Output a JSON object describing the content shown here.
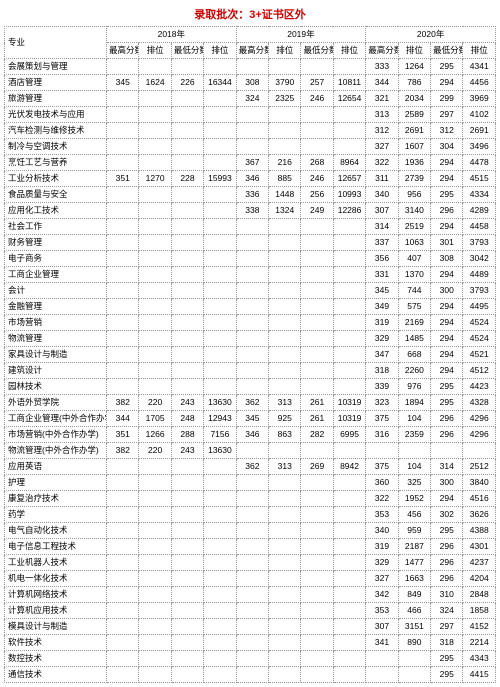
{
  "title": "录取批次：3+证书区外",
  "header": {
    "major": "专业",
    "years": [
      "2018年",
      "2019年",
      "2020年"
    ],
    "cols_full": [
      "最高分数",
      "排位",
      "最低分数",
      "排位"
    ]
  },
  "rows": [
    {
      "m": "会展策划与管理",
      "y18": [
        "",
        "",
        "",
        ""
      ],
      "y19": [
        "",
        "",
        "",
        ""
      ],
      "y20": [
        "333",
        "1264",
        "295",
        "4341"
      ]
    },
    {
      "m": "酒店管理",
      "y18": [
        "345",
        "1624",
        "226",
        "16344"
      ],
      "y19": [
        "308",
        "3790",
        "257",
        "10811"
      ],
      "y20": [
        "344",
        "786",
        "294",
        "4456"
      ]
    },
    {
      "m": "旅游管理",
      "y18": [
        "",
        "",
        "",
        ""
      ],
      "y19": [
        "324",
        "2325",
        "246",
        "12654"
      ],
      "y20": [
        "321",
        "2034",
        "299",
        "3969"
      ]
    },
    {
      "m": "光伏发电技术与应用",
      "y18": [
        "",
        "",
        "",
        ""
      ],
      "y19": [
        "",
        "",
        "",
        ""
      ],
      "y20": [
        "313",
        "2589",
        "297",
        "4102"
      ]
    },
    {
      "m": "汽车检测与维修技术",
      "y18": [
        "",
        "",
        "",
        ""
      ],
      "y19": [
        "",
        "",
        "",
        ""
      ],
      "y20": [
        "312",
        "2691",
        "312",
        "2691"
      ]
    },
    {
      "m": "制冷与空调技术",
      "y18": [
        "",
        "",
        "",
        ""
      ],
      "y19": [
        "",
        "",
        "",
        ""
      ],
      "y20": [
        "327",
        "1607",
        "304",
        "3496"
      ]
    },
    {
      "m": "烹饪工艺与营养",
      "y18": [
        "",
        "",
        "",
        ""
      ],
      "y19": [
        "367",
        "216",
        "268",
        "8964"
      ],
      "y20": [
        "322",
        "1936",
        "294",
        "4478"
      ]
    },
    {
      "m": "工业分析技术",
      "y18": [
        "351",
        "1270",
        "228",
        "15993"
      ],
      "y19": [
        "346",
        "885",
        "246",
        "12657"
      ],
      "y20": [
        "311",
        "2739",
        "294",
        "4515"
      ]
    },
    {
      "m": "食品质量与安全",
      "y18": [
        "",
        "",
        "",
        ""
      ],
      "y19": [
        "336",
        "1448",
        "256",
        "10993"
      ],
      "y20": [
        "340",
        "956",
        "295",
        "4334"
      ]
    },
    {
      "m": "应用化工技术",
      "y18": [
        "",
        "",
        "",
        ""
      ],
      "y19": [
        "338",
        "1324",
        "249",
        "12286"
      ],
      "y20": [
        "307",
        "3140",
        "296",
        "4289"
      ]
    },
    {
      "m": "社会工作",
      "y18": [
        "",
        "",
        "",
        ""
      ],
      "y19": [
        "",
        "",
        "",
        ""
      ],
      "y20": [
        "314",
        "2519",
        "294",
        "4458"
      ]
    },
    {
      "m": "财务管理",
      "y18": [
        "",
        "",
        "",
        ""
      ],
      "y19": [
        "",
        "",
        "",
        ""
      ],
      "y20": [
        "337",
        "1063",
        "301",
        "3793"
      ]
    },
    {
      "m": "电子商务",
      "y18": [
        "",
        "",
        "",
        ""
      ],
      "y19": [
        "",
        "",
        "",
        ""
      ],
      "y20": [
        "356",
        "407",
        "308",
        "3042"
      ]
    },
    {
      "m": "工商企业管理",
      "y18": [
        "",
        "",
        "",
        ""
      ],
      "y19": [
        "",
        "",
        "",
        ""
      ],
      "y20": [
        "331",
        "1370",
        "294",
        "4489"
      ]
    },
    {
      "m": "会计",
      "y18": [
        "",
        "",
        "",
        ""
      ],
      "y19": [
        "",
        "",
        "",
        ""
      ],
      "y20": [
        "345",
        "744",
        "300",
        "3793"
      ]
    },
    {
      "m": "金融管理",
      "y18": [
        "",
        "",
        "",
        ""
      ],
      "y19": [
        "",
        "",
        "",
        ""
      ],
      "y20": [
        "349",
        "575",
        "294",
        "4495"
      ]
    },
    {
      "m": "市场营销",
      "y18": [
        "",
        "",
        "",
        ""
      ],
      "y19": [
        "",
        "",
        "",
        ""
      ],
      "y20": [
        "319",
        "2169",
        "294",
        "4524"
      ]
    },
    {
      "m": "物流管理",
      "y18": [
        "",
        "",
        "",
        ""
      ],
      "y19": [
        "",
        "",
        "",
        ""
      ],
      "y20": [
        "329",
        "1485",
        "294",
        "4524"
      ]
    },
    {
      "m": "家具设计与制造",
      "y18": [
        "",
        "",
        "",
        ""
      ],
      "y19": [
        "",
        "",
        "",
        ""
      ],
      "y20": [
        "347",
        "668",
        "294",
        "4521"
      ]
    },
    {
      "m": "建筑设计",
      "y18": [
        "",
        "",
        "",
        ""
      ],
      "y19": [
        "",
        "",
        "",
        ""
      ],
      "y20": [
        "318",
        "2260",
        "294",
        "4512"
      ]
    },
    {
      "m": "园林技术",
      "y18": [
        "",
        "",
        "",
        ""
      ],
      "y19": [
        "",
        "",
        "",
        ""
      ],
      "y20": [
        "339",
        "976",
        "295",
        "4423"
      ]
    },
    {
      "m": "外语外贸学院",
      "y18": [
        "382",
        "220",
        "243",
        "13630"
      ],
      "y19": [
        "362",
        "313",
        "261",
        "10319"
      ],
      "y20": [
        "323",
        "1894",
        "295",
        "4328"
      ]
    },
    {
      "m": "工商企业管理(中外合作办学)",
      "y18": [
        "344",
        "1705",
        "248",
        "12943"
      ],
      "y19": [
        "345",
        "925",
        "261",
        "10319"
      ],
      "y20": [
        "375",
        "104",
        "296",
        "4296"
      ]
    },
    {
      "m": "市场营销(中外合作办学)",
      "y18": [
        "351",
        "1266",
        "288",
        "7156"
      ],
      "y19": [
        "346",
        "863",
        "282",
        "6995"
      ],
      "y20": [
        "316",
        "2359",
        "296",
        "4296"
      ]
    },
    {
      "m": "物流管理(中外合作办学)",
      "y18": [
        "382",
        "220",
        "243",
        "13630"
      ],
      "y19": [
        "",
        "",
        "",
        ""
      ],
      "y20": [
        "",
        "",
        "",
        ""
      ]
    },
    {
      "m": "应用英语",
      "y18": [
        "",
        "",
        "",
        ""
      ],
      "y19": [
        "362",
        "313",
        "269",
        "8942"
      ],
      "y20": [
        "375",
        "104",
        "314",
        "2512"
      ]
    },
    {
      "m": "护理",
      "y18": [
        "",
        "",
        "",
        ""
      ],
      "y19": [
        "",
        "",
        "",
        ""
      ],
      "y20": [
        "360",
        "325",
        "300",
        "3840"
      ]
    },
    {
      "m": "康复治疗技术",
      "y18": [
        "",
        "",
        "",
        ""
      ],
      "y19": [
        "",
        "",
        "",
        ""
      ],
      "y20": [
        "322",
        "1952",
        "294",
        "4516"
      ]
    },
    {
      "m": "药学",
      "y18": [
        "",
        "",
        "",
        ""
      ],
      "y19": [
        "",
        "",
        "",
        ""
      ],
      "y20": [
        "353",
        "456",
        "302",
        "3626"
      ]
    },
    {
      "m": "电气自动化技术",
      "y18": [
        "",
        "",
        "",
        ""
      ],
      "y19": [
        "",
        "",
        "",
        ""
      ],
      "y20": [
        "340",
        "959",
        "295",
        "4388"
      ]
    },
    {
      "m": "电子信息工程技术",
      "y18": [
        "",
        "",
        "",
        ""
      ],
      "y19": [
        "",
        "",
        "",
        ""
      ],
      "y20": [
        "319",
        "2187",
        "296",
        "4301"
      ]
    },
    {
      "m": "工业机器人技术",
      "y18": [
        "",
        "",
        "",
        ""
      ],
      "y19": [
        "",
        "",
        "",
        ""
      ],
      "y20": [
        "329",
        "1477",
        "296",
        "4237"
      ]
    },
    {
      "m": "机电一体化技术",
      "y18": [
        "",
        "",
        "",
        ""
      ],
      "y19": [
        "",
        "",
        "",
        ""
      ],
      "y20": [
        "327",
        "1663",
        "296",
        "4204"
      ]
    },
    {
      "m": "计算机网络技术",
      "y18": [
        "",
        "",
        "",
        ""
      ],
      "y19": [
        "",
        "",
        "",
        ""
      ],
      "y20": [
        "342",
        "849",
        "310",
        "2848"
      ]
    },
    {
      "m": "计算机应用技术",
      "y18": [
        "",
        "",
        "",
        ""
      ],
      "y19": [
        "",
        "",
        "",
        ""
      ],
      "y20": [
        "353",
        "466",
        "324",
        "1858"
      ]
    },
    {
      "m": "模具设计与制造",
      "y18": [
        "",
        "",
        "",
        ""
      ],
      "y19": [
        "",
        "",
        "",
        ""
      ],
      "y20": [
        "307",
        "3151",
        "297",
        "4152"
      ]
    },
    {
      "m": "软件技术",
      "y18": [
        "",
        "",
        "",
        ""
      ],
      "y19": [
        "",
        "",
        "",
        ""
      ],
      "y20": [
        "341",
        "890",
        "318",
        "2214"
      ]
    },
    {
      "m": "数控技术",
      "y18": [
        "",
        "",
        "",
        ""
      ],
      "y19": [
        "",
        "",
        "",
        ""
      ],
      "y20": [
        "",
        "",
        "295",
        "4343"
      ]
    },
    {
      "m": "通信技术",
      "y18": [
        "",
        "",
        "",
        ""
      ],
      "y19": [
        "",
        "",
        "",
        ""
      ],
      "y20": [
        "",
        "",
        "295",
        "4415"
      ]
    }
  ]
}
